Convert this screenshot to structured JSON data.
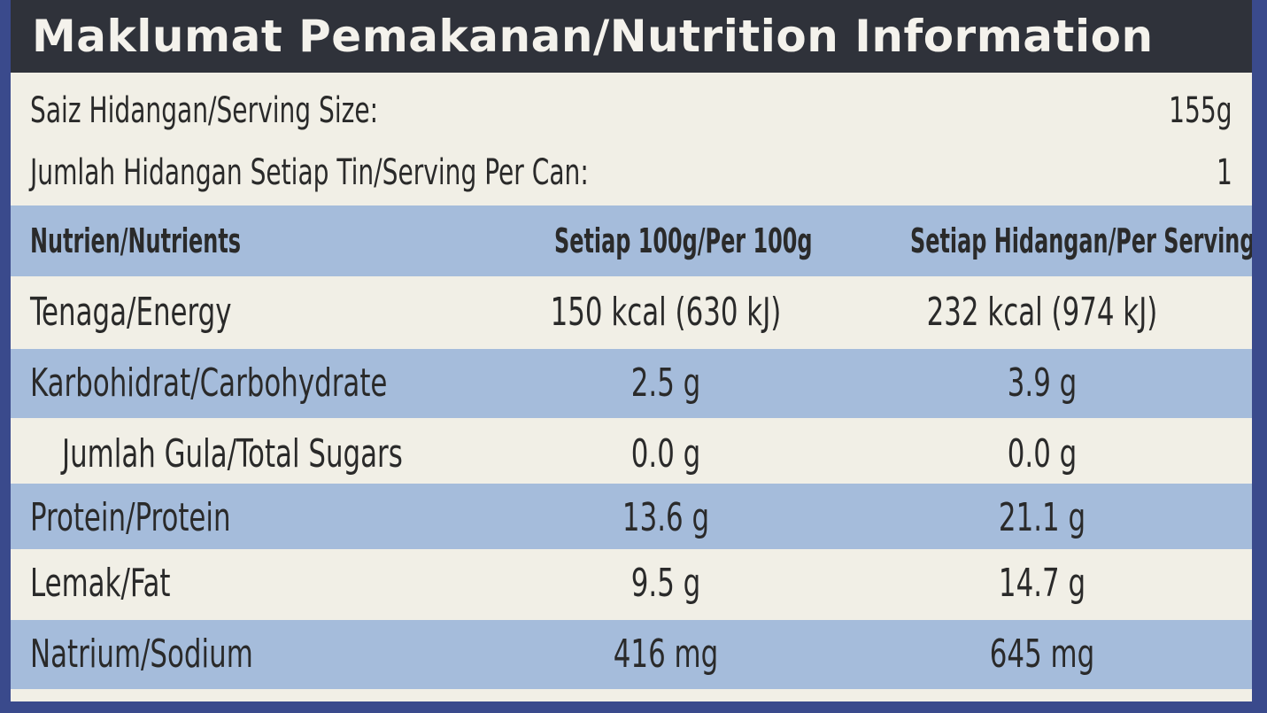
{
  "title": "Maklumat Pemakanan/Nutrition Information",
  "serving_size": {
    "label": "Saiz Hidangan/Serving Size:",
    "value": "155g"
  },
  "servings_per_can": {
    "label": "Jumlah Hidangan Setiap Tin/Serving Per Can:",
    "value": "1"
  },
  "table": {
    "headers": {
      "nutrient": "Nutrien/Nutrients",
      "per_100g": "Setiap 100g/Per 100g",
      "per_serving": "Setiap Hidangan/Per Serving"
    },
    "rows": [
      {
        "name": "Tenaga/Energy",
        "per_100g": "150 kcal (630 kJ)",
        "per_serving": "232 kcal (974 kJ)"
      },
      {
        "name": "Karbohidrat/Carbohydrate",
        "per_100g": "2.5 g",
        "per_serving": "3.9 g"
      },
      {
        "name": "Jumlah Gula/Total Sugars",
        "per_100g": "0.0 g",
        "per_serving": "0.0 g"
      },
      {
        "name": "Protein/Protein",
        "per_100g": "13.6 g",
        "per_serving": "21.1 g"
      },
      {
        "name": "Lemak/Fat",
        "per_100g": "9.5 g",
        "per_serving": "14.7 g"
      },
      {
        "name": "Natrium/Sodium",
        "per_100g": "416 mg",
        "per_serving": "645 mg"
      }
    ]
  },
  "colors": {
    "title_bg": "#2f323a",
    "stripe_blue": "#a5bcdb",
    "stripe_white": "#f1efe6",
    "can_blue": "#3a4a8c"
  }
}
